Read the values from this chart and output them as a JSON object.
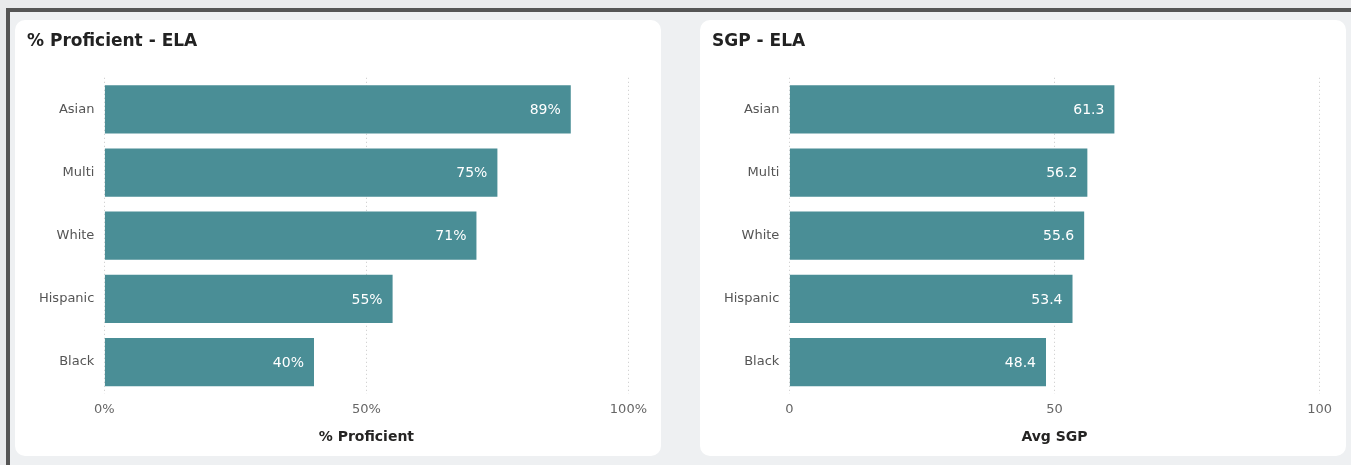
{
  "chart_data": [
    {
      "type": "bar",
      "orientation": "horizontal",
      "title": "% Proficient - ELA",
      "xlabel": "% Proficient",
      "categories": [
        "Asian",
        "Multi",
        "White",
        "Hispanic",
        "Black"
      ],
      "values": [
        89,
        75,
        71,
        55,
        40
      ],
      "value_labels": [
        "89%",
        "75%",
        "71%",
        "55%",
        "40%"
      ],
      "color": "#4a8e96",
      "xlim": [
        0,
        100
      ],
      "xticks": [
        {
          "value": 0,
          "label": "0%"
        },
        {
          "value": 50,
          "label": "50%"
        },
        {
          "value": 100,
          "label": "100%"
        }
      ],
      "grid": "x"
    },
    {
      "type": "bar",
      "orientation": "horizontal",
      "title": "SGP - ELA",
      "xlabel": "Avg SGP",
      "categories": [
        "Asian",
        "Multi",
        "White",
        "Hispanic",
        "Black"
      ],
      "values": [
        61.3,
        56.2,
        55.6,
        53.4,
        48.4
      ],
      "data_labels": true,
      "color": "#4a8e96",
      "xlim": [
        0,
        100
      ],
      "xticks": [
        0,
        50,
        100
      ],
      "grid": "x"
    }
  ]
}
